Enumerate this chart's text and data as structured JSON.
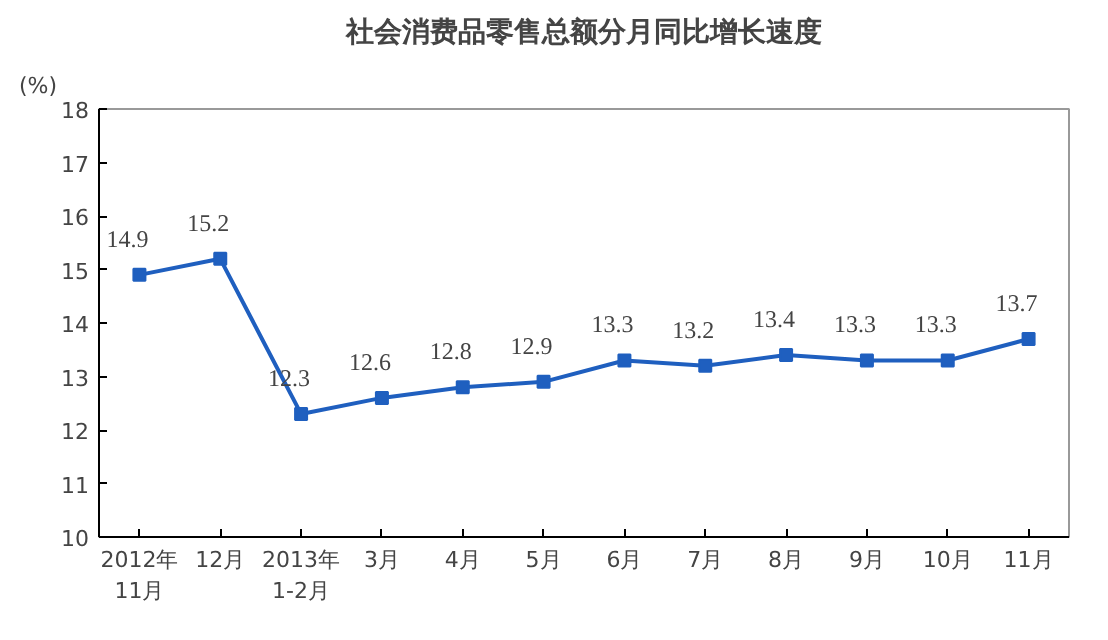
{
  "chart_data": {
    "type": "line",
    "title": "社会消费品零售总额分月同比增长速度",
    "ylabel": "(%)",
    "categories": [
      "2012年\n11月",
      "12月",
      "2013年\n1-2月",
      "3月",
      "4月",
      "5月",
      "6月",
      "7月",
      "8月",
      "9月",
      "10月",
      "11月"
    ],
    "series": [
      {
        "color": "#1f5fbf",
        "values": [
          14.9,
          15.2,
          12.3,
          12.6,
          12.8,
          12.9,
          13.3,
          13.2,
          13.4,
          13.3,
          13.3,
          13.7
        ]
      }
    ],
    "ylim": [
      10,
      18
    ],
    "yticks": [
      10,
      11,
      12,
      13,
      14,
      15,
      16,
      17,
      18
    ],
    "grid": false,
    "marker": "square",
    "line_style": "solid",
    "data_labels": true
  }
}
